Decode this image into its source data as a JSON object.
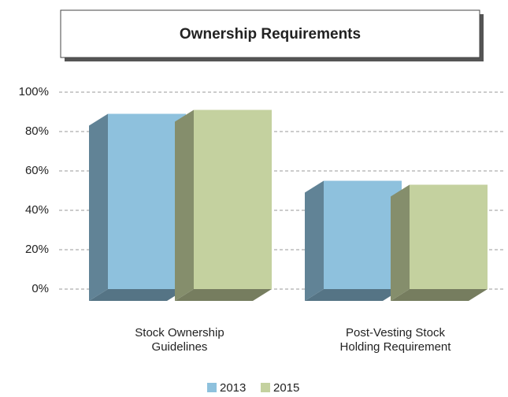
{
  "chart_data": {
    "type": "bar",
    "title": "Ownership Requirements",
    "categories": [
      "Stock Ownership Guidelines",
      "Post-Vesting Stock Holding Requirement"
    ],
    "series": [
      {
        "name": "2013",
        "color": "#8ec1dd",
        "values": [
          89,
          55
        ]
      },
      {
        "name": "2015",
        "color": "#c4d19f",
        "values": [
          91,
          53
        ]
      }
    ],
    "ylim": [
      0,
      100
    ],
    "yticks": [
      {
        "value": 0,
        "label": "0%"
      },
      {
        "value": 20,
        "label": "20%"
      },
      {
        "value": 40,
        "label": "40%"
      },
      {
        "value": 60,
        "label": "60%"
      },
      {
        "value": 80,
        "label": "80%"
      },
      {
        "value": 100,
        "label": "100%"
      }
    ],
    "grid": true,
    "legend": "bottom"
  }
}
